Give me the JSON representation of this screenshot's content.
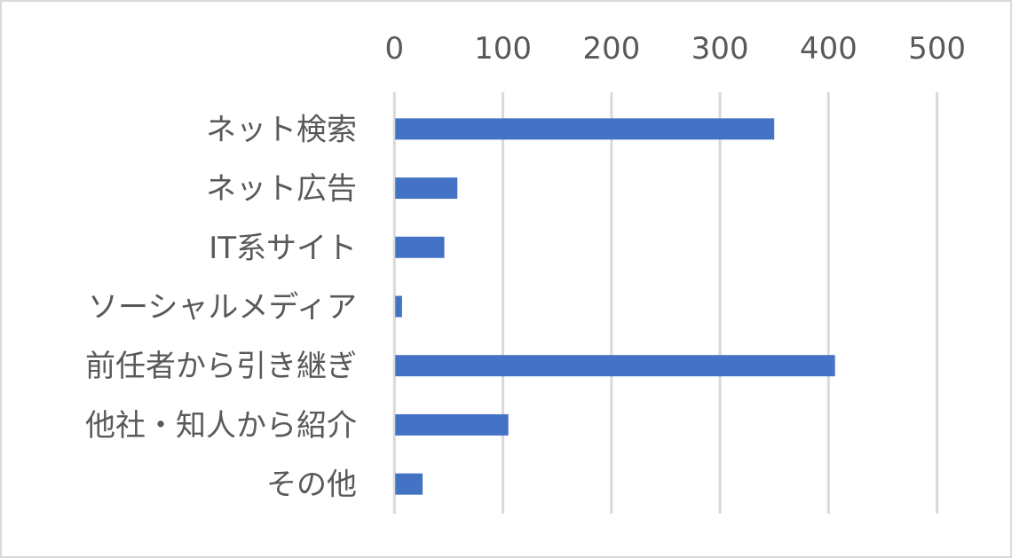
{
  "chart_data": {
    "type": "bar",
    "orientation": "horizontal",
    "title": "",
    "xlabel": "",
    "ylabel": "",
    "categories": [
      "ネット検索",
      "ネット広告",
      "IT系サイト",
      "ソーシャルメディア",
      "前任者から引き継ぎ",
      "他社・知人から紹介",
      "その他"
    ],
    "values": [
      350,
      58,
      46,
      7,
      406,
      105,
      26
    ],
    "xlim": [
      0,
      500
    ],
    "ticks": [
      "0",
      "100",
      "200",
      "300",
      "400",
      "500"
    ],
    "tick_position": "top",
    "grid": true,
    "legend": "none",
    "colors": {
      "bar": "#4472C4",
      "grid": "#D9D9D9",
      "text": "#595959"
    }
  }
}
